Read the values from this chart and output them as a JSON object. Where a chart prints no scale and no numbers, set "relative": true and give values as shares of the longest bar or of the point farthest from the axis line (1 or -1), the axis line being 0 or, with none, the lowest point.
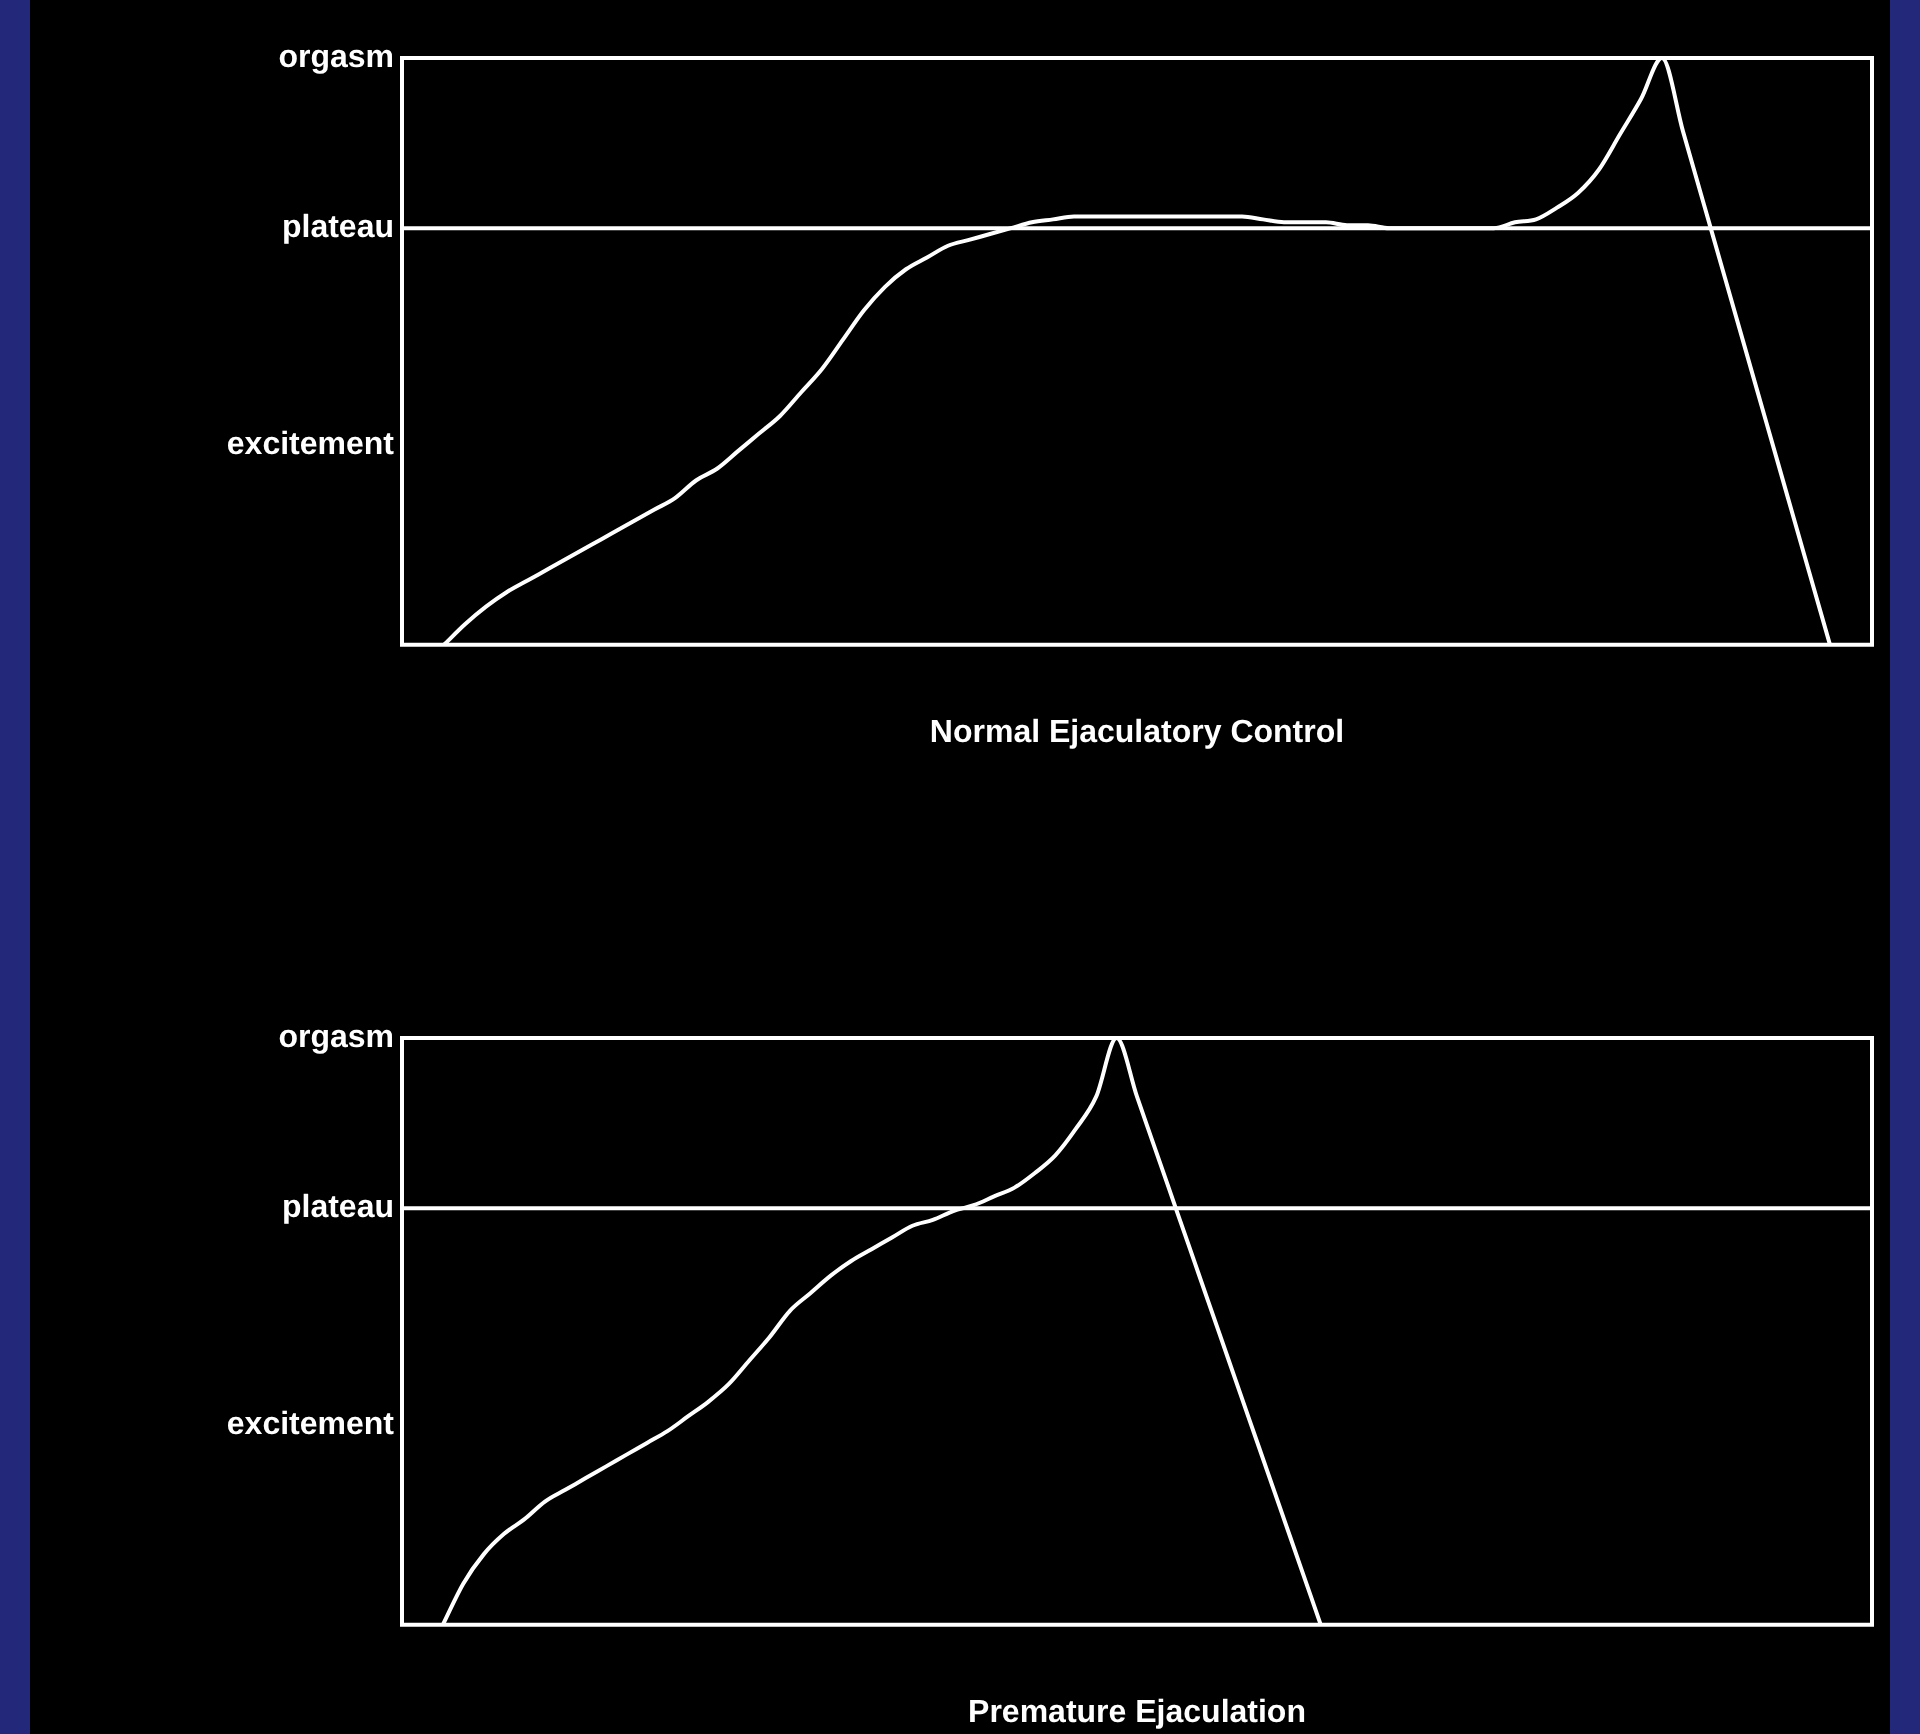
{
  "chart_data": [
    {
      "type": "line",
      "xlabel": "Normal Ejaculatory Control",
      "categories": [
        null,
        null,
        null,
        null,
        null,
        null,
        null,
        null,
        null,
        null,
        null,
        null,
        null,
        null,
        null,
        null,
        null,
        null,
        null,
        null,
        null,
        null,
        null,
        null,
        null,
        null,
        null,
        null,
        null,
        null,
        null,
        null,
        null,
        null,
        null,
        null,
        null,
        null,
        null,
        null,
        null,
        null,
        null,
        null,
        null,
        null,
        null,
        null,
        null,
        null,
        null,
        null,
        null,
        null,
        null,
        null,
        null,
        null,
        null,
        null,
        null,
        null,
        null,
        null,
        null,
        null,
        null,
        null,
        null,
        null,
        null
      ],
      "series": [
        {
          "color": "#ffffff",
          "values": [
            null,
            null,
            0,
            0.035,
            0.065,
            0.09,
            0.11,
            0.13,
            0.15,
            0.17,
            0.19,
            0.21,
            0.23,
            0.25,
            0.28,
            0.3,
            0.33,
            0.36,
            0.39,
            0.43,
            0.47,
            0.52,
            0.57,
            0.61,
            0.64,
            0.66,
            0.68,
            0.69,
            0.7,
            0.71,
            0.72,
            0.725,
            0.73,
            0.73,
            0.73,
            0.73,
            0.73,
            0.73,
            0.73,
            0.73,
            0.73,
            0.725,
            0.72,
            0.72,
            0.72,
            0.715,
            0.715,
            0.71,
            0.71,
            0.71,
            0.71,
            0.71,
            0.71,
            0.72,
            0.725,
            0.745,
            0.77,
            0.81,
            0.87,
            0.93,
            1,
            0.875,
            0.75,
            0.625,
            0.5,
            0.375,
            0.25,
            0.125,
            0,
            null,
            null
          ]
        }
      ],
      "relative": true,
      "annotations": [
        "orgasm",
        "excitement"
      ],
      "ref_lines": [
        {
          "axis": "y",
          "value": 0.71,
          "label": "plateau",
          "color": "#ffffff"
        }
      ],
      "legend": false,
      "grid": false
    },
    {
      "type": "line",
      "xlabel": "Premature Ejaculation",
      "categories": [
        null,
        null,
        null,
        null,
        null,
        null,
        null,
        null,
        null,
        null,
        null,
        null,
        null,
        null,
        null,
        null,
        null,
        null,
        null,
        null,
        null,
        null,
        null,
        null,
        null,
        null,
        null,
        null,
        null,
        null,
        null,
        null,
        null,
        null,
        null,
        null,
        null,
        null,
        null,
        null,
        null,
        null,
        null,
        null,
        null,
        null,
        null,
        null,
        null,
        null,
        null,
        null,
        null,
        null,
        null,
        null,
        null,
        null,
        null,
        null,
        null,
        null,
        null,
        null,
        null,
        null,
        null,
        null,
        null,
        null,
        null,
        null,
        null
      ],
      "series": [
        {
          "color": "#ffffff",
          "values": [
            null,
            null,
            0,
            0.07,
            0.12,
            0.155,
            0.18,
            0.21,
            0.23,
            0.25,
            0.27,
            0.29,
            0.31,
            0.33,
            0.355,
            0.38,
            0.41,
            0.45,
            0.49,
            0.535,
            0.565,
            0.595,
            0.62,
            0.64,
            0.66,
            0.68,
            0.69,
            0.705,
            0.715,
            0.73,
            0.745,
            0.77,
            0.8,
            0.845,
            0.9,
            1,
            0.9,
            0.8,
            0.7,
            0.6,
            0.5,
            0.4,
            0.3,
            0.2,
            0.1,
            0,
            null,
            null,
            null,
            null,
            null,
            null,
            null,
            null,
            null,
            null,
            null,
            null,
            null,
            null,
            null,
            null,
            null,
            null,
            null,
            null,
            null,
            null,
            null,
            null,
            null,
            null,
            null
          ]
        }
      ],
      "relative": true,
      "annotations": [
        "orgasm",
        "excitement"
      ],
      "ref_lines": [
        {
          "axis": "y",
          "value": 0.71,
          "label": "plateau",
          "color": "#ffffff"
        }
      ],
      "legend": false,
      "grid": false
    }
  ]
}
